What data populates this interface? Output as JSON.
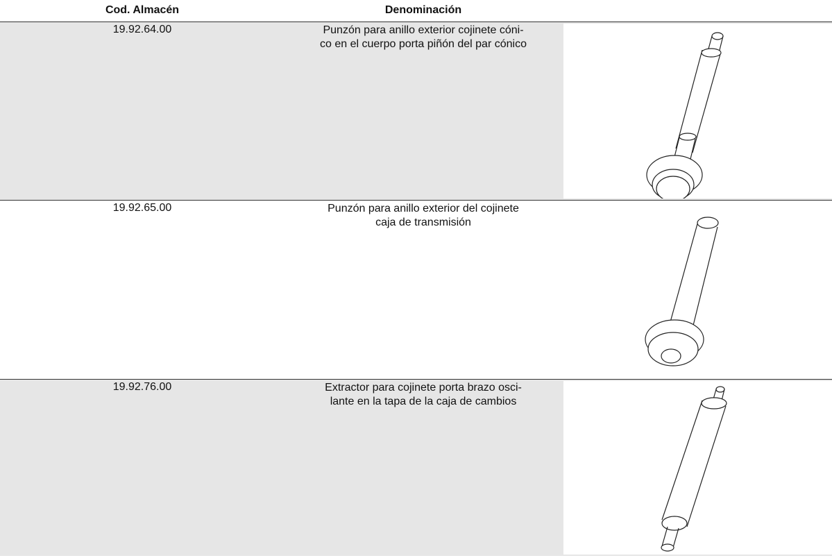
{
  "header": {
    "columns": [
      "Cod. Almacén",
      "Denominación"
    ]
  },
  "rows": [
    {
      "code": "19.92.64.00",
      "description": [
        "Punzón para anillo exterior cojinete cóni-",
        "co en el cuerpo porta piñón del par cónico"
      ]
    },
    {
      "code": "19.92.65.00",
      "description": [
        "Punzón para anillo exterior del cojinete",
        "caja de transmisión"
      ]
    },
    {
      "code": "19.92.76.00",
      "description": [
        "Extractor para cojinete porta brazo osci-",
        "lante en la tapa de la caja de cambios"
      ]
    }
  ]
}
